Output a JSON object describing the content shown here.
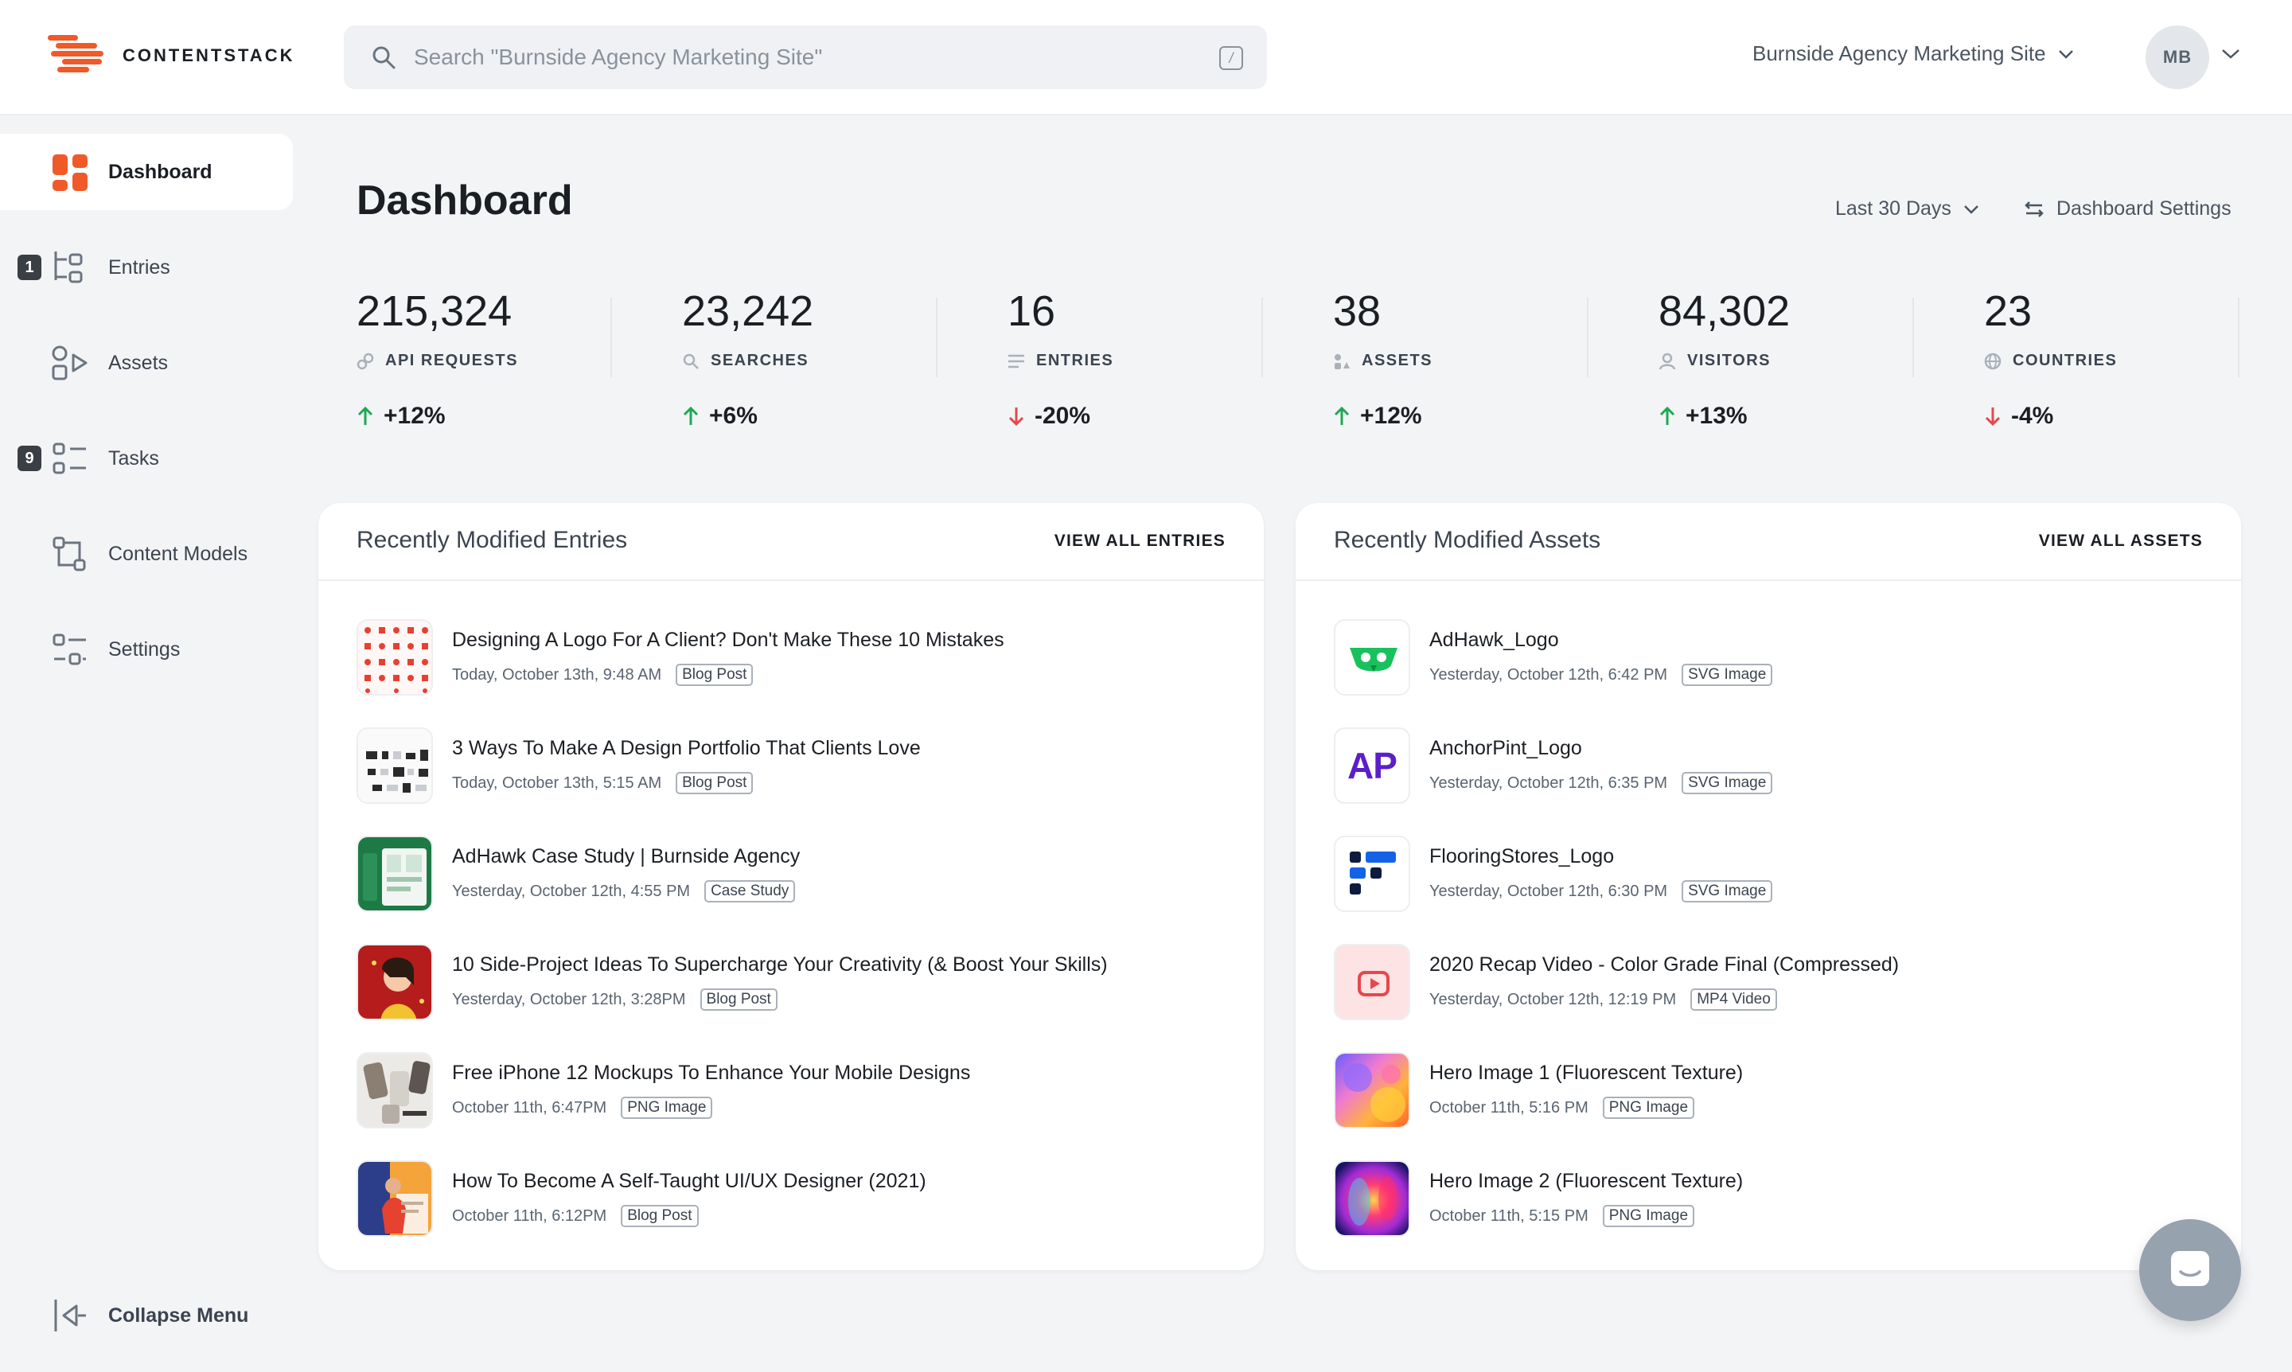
{
  "brand": {
    "name": "CONTENTSTACK",
    "accent": "#f05a28"
  },
  "search": {
    "placeholder": "Search \"Burnside Agency Marketing Site\"",
    "shortcut": "/"
  },
  "header": {
    "site_name": "Burnside Agency Marketing Site",
    "user_initials": "MB"
  },
  "sidebar": {
    "items": [
      {
        "label": "Dashboard",
        "icon": "grid-icon",
        "active": true
      },
      {
        "label": "Entries",
        "icon": "entries-icon",
        "badge": "1"
      },
      {
        "label": "Assets",
        "icon": "assets-icon"
      },
      {
        "label": "Tasks",
        "icon": "tasks-icon",
        "badge": "9"
      },
      {
        "label": "Content Models",
        "icon": "content-models-icon"
      },
      {
        "label": "Settings",
        "icon": "settings-icon"
      }
    ],
    "collapse_label": "Collapse Menu"
  },
  "page": {
    "title": "Dashboard",
    "date_range": "Last 30 Days",
    "settings_label": "Dashboard Settings"
  },
  "stats": [
    {
      "value": "215,324",
      "label": "API REQUESTS",
      "icon": "link-icon",
      "change": "+12%",
      "direction": "up"
    },
    {
      "value": "23,242",
      "label": "SEARCHES",
      "icon": "search-icon",
      "change": "+6%",
      "direction": "up"
    },
    {
      "value": "16",
      "label": "ENTRIES",
      "icon": "lines-icon",
      "change": "-20%",
      "direction": "down"
    },
    {
      "value": "38",
      "label": "ASSETS",
      "icon": "shapes-icon",
      "change": "+12%",
      "direction": "up"
    },
    {
      "value": "84,302",
      "label": "VISITORS",
      "icon": "user-icon",
      "change": "+13%",
      "direction": "up"
    },
    {
      "value": "23",
      "label": "COUNTRIES",
      "icon": "globe-icon",
      "change": "-4%",
      "direction": "down"
    }
  ],
  "colors": {
    "up": "#1fa854",
    "down": "#e5484d"
  },
  "entries_card": {
    "title": "Recently Modified Entries",
    "link": "VIEW ALL ENTRIES",
    "rows": [
      {
        "title": "Designing A Logo For A Client? Don't Make These 10 Mistakes",
        "date": "Today, October 13th, 9:48 AM",
        "tag": "Blog Post",
        "thumb": "red-icons-pattern"
      },
      {
        "title": "3 Ways To Make A Design Portfolio That Clients Love",
        "date": "Today, October 13th, 5:15 AM",
        "tag": "Blog Post",
        "thumb": "portfolio-grid"
      },
      {
        "title": "AdHawk Case Study | Burnside Agency",
        "date": "Yesterday, October 12th, 4:55 PM",
        "tag": "Case Study",
        "thumb": "green-dashboard"
      },
      {
        "title": "10 Side-Project Ideas To Supercharge Your Creativity (& Boost Your Skills)",
        "date": "Yesterday, October 12th, 3:28PM",
        "tag": "Blog Post",
        "thumb": "red-illustration"
      },
      {
        "title": "Free iPhone 12 Mockups To Enhance Your Mobile Designs",
        "date": "October 11th, 6:47PM",
        "tag": "PNG Image",
        "thumb": "phone-mockups"
      },
      {
        "title": "How To Become A Self-Taught UI/UX Designer (2021)",
        "date": "October 11th, 6:12PM",
        "tag": "Blog Post",
        "thumb": "designer-illustration"
      }
    ]
  },
  "assets_card": {
    "title": "Recently Modified Assets",
    "link": "VIEW ALL ASSETS",
    "rows": [
      {
        "title": "AdHawk_Logo",
        "date": "Yesterday, October 12th, 6:42 PM",
        "tag": "SVG Image",
        "thumb": "adhawk-logo"
      },
      {
        "title": "AnchorPint_Logo",
        "date": "Yesterday, October 12th, 6:35 PM",
        "tag": "SVG Image",
        "thumb": "anchorpint-logo",
        "thumb_text": "AP"
      },
      {
        "title": "FlooringStores_Logo",
        "date": "Yesterday, October 12th, 6:30 PM",
        "tag": "SVG Image",
        "thumb": "flooringstores-logo"
      },
      {
        "title": "2020 Recap Video - Color Grade Final (Compressed)",
        "date": "Yesterday, October 12th, 12:19 PM",
        "tag": "MP4 Video",
        "thumb": "video-play"
      },
      {
        "title": "Hero Image 1 (Fluorescent Texture)",
        "date": "October 11th, 5:16 PM",
        "tag": "PNG Image",
        "thumb": "fluorescent-texture-1"
      },
      {
        "title": "Hero Image 2 (Fluorescent Texture)",
        "date": "October 11th, 5:15 PM",
        "tag": "PNG Image",
        "thumb": "fluorescent-texture-2"
      }
    ]
  }
}
